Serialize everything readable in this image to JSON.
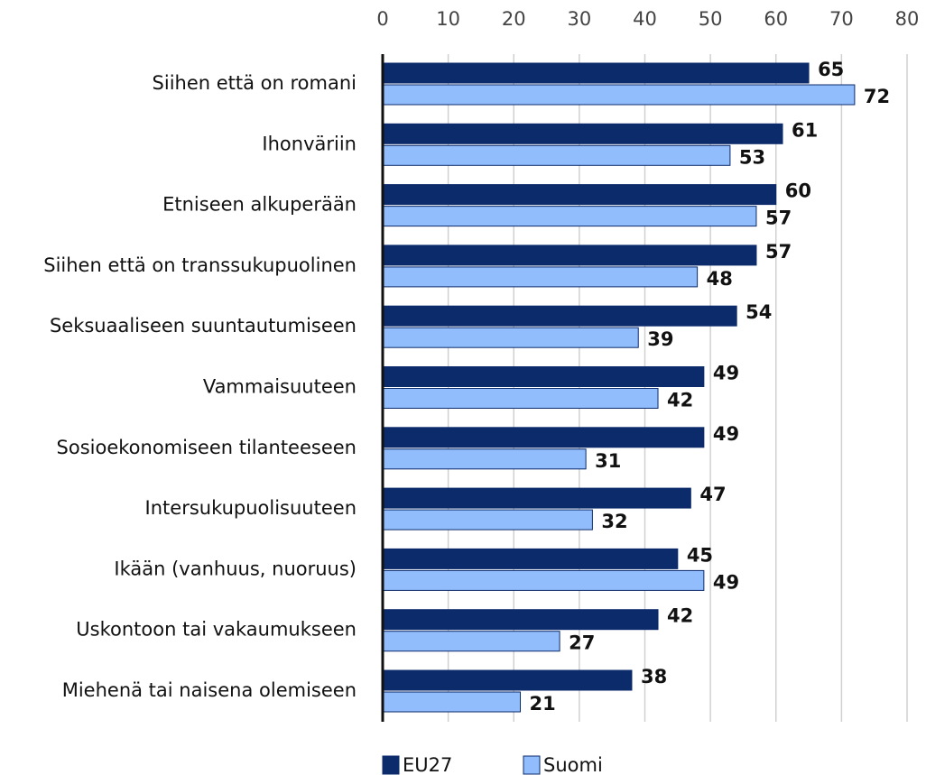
{
  "chart_data": {
    "type": "bar",
    "orientation": "horizontal",
    "categories": [
      "Siihen että on romani",
      "Ihonväriin",
      "Etniseen alkuperään",
      "Siihen että on transsukupuolinen",
      "Seksuaaliseen suuntautumiseen",
      "Vammaisuuteen",
      "Sosioekonomiseen tilanteeseen",
      "Intersukupuolisuuteen",
      "Ikään (vanhuus, nuoruus)",
      "Uskontoon tai vakaumukseen",
      "Miehenä tai naisena olemiseen"
    ],
    "series": [
      {
        "name": "EU27",
        "color": "#0c2b6b",
        "values": [
          65,
          61,
          60,
          57,
          54,
          49,
          49,
          47,
          45,
          42,
          38
        ]
      },
      {
        "name": "Suomi",
        "color": "#91bdfc",
        "values": [
          72,
          53,
          57,
          48,
          39,
          42,
          31,
          32,
          49,
          27,
          21
        ]
      }
    ],
    "xlim": [
      0,
      80
    ],
    "xticks": [
      0,
      10,
      20,
      30,
      40,
      50,
      60,
      70,
      80
    ],
    "grid": true,
    "legend": "bottom"
  }
}
